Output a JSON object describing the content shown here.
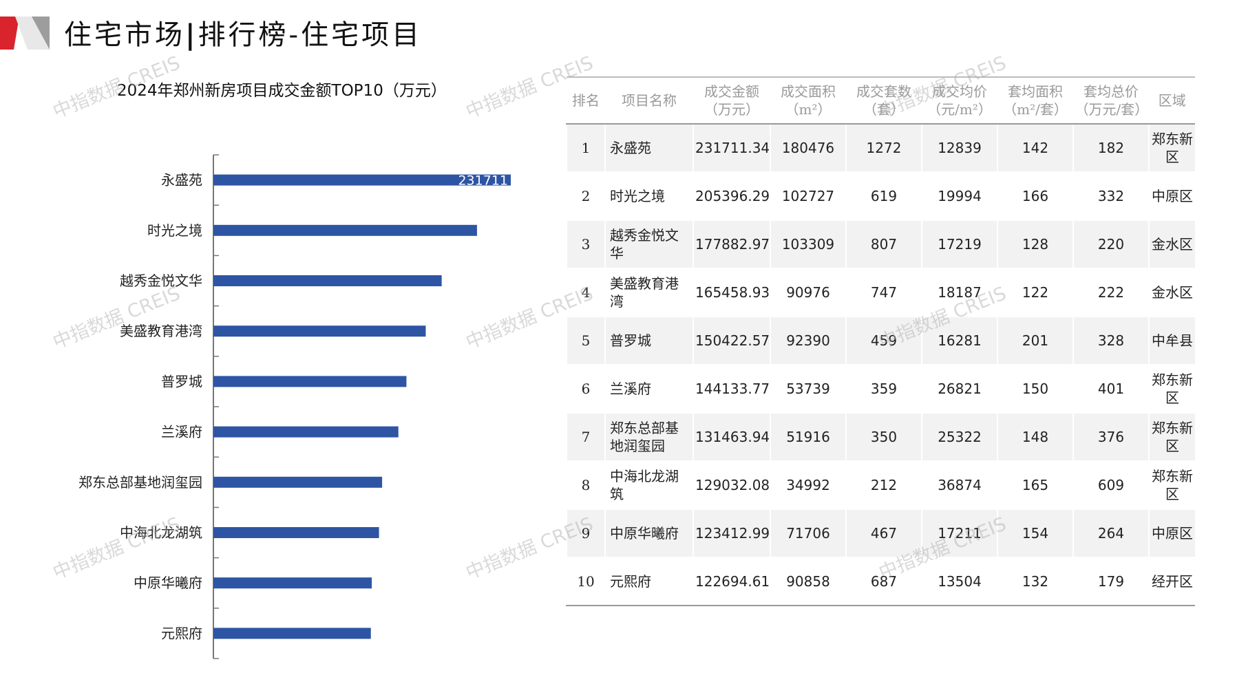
{
  "header": {
    "title_left": "住宅市场",
    "title_sep": "|",
    "title_right": "排行榜-住宅项目"
  },
  "colors": {
    "bar": "#2e55a4",
    "accent_red": "#d9232d",
    "accent_gray": "#9d9d9d"
  },
  "watermark": {
    "text": "中指数据 CREIS"
  },
  "chart_data": {
    "type": "bar",
    "title": "2024年郑州新房项目成交金额TOP10（万元）",
    "orientation": "horizontal",
    "categories": [
      "永盛苑",
      "时光之境",
      "越秀金悦文华",
      "美盛教育港湾",
      "普罗城",
      "兰溪府",
      "郑东总部基地润玺园",
      "中海北龙湖筑",
      "中原华曦府",
      "元熙府"
    ],
    "values": [
      231711.34,
      205396.29,
      177882.97,
      165458.93,
      150422.57,
      144133.77,
      131463.94,
      129032.08,
      123412.99,
      122694.61
    ],
    "data_labels": [
      "231711",
      "",
      "",
      "",
      "",
      "",
      "",
      "",
      "",
      ""
    ]
  },
  "table": {
    "headers": [
      [
        "排名"
      ],
      [
        "项目名称"
      ],
      [
        "成交金额",
        "（万元）"
      ],
      [
        "成交面积",
        "（m²）"
      ],
      [
        "成交套数",
        "（套）"
      ],
      [
        "成交均价",
        "（元/m²）"
      ],
      [
        "套均面积",
        "（m²/套）"
      ],
      [
        "套均总价",
        "（万元/套）"
      ],
      [
        "区域"
      ]
    ],
    "rows": [
      [
        "1",
        "永盛苑",
        "231711.34",
        "180476",
        "1272",
        "12839",
        "142",
        "182",
        "郑东新区"
      ],
      [
        "2",
        "时光之境",
        "205396.29",
        "102727",
        "619",
        "19994",
        "166",
        "332",
        "中原区"
      ],
      [
        "3",
        "越秀金悦文华",
        "177882.97",
        "103309",
        "807",
        "17219",
        "128",
        "220",
        "金水区"
      ],
      [
        "4",
        "美盛教育港湾",
        "165458.93",
        "90976",
        "747",
        "18187",
        "122",
        "222",
        "金水区"
      ],
      [
        "5",
        "普罗城",
        "150422.57",
        "92390",
        "459",
        "16281",
        "201",
        "328",
        "中牟县"
      ],
      [
        "6",
        "兰溪府",
        "144133.77",
        "53739",
        "359",
        "26821",
        "150",
        "401",
        "郑东新区"
      ],
      [
        "7",
        "郑东总部基地润玺园",
        "131463.94",
        "51916",
        "350",
        "25322",
        "148",
        "376",
        "郑东新区"
      ],
      [
        "8",
        "中海北龙湖筑",
        "129032.08",
        "34992",
        "212",
        "36874",
        "165",
        "609",
        "郑东新区"
      ],
      [
        "9",
        "中原华曦府",
        "123412.99",
        "71706",
        "467",
        "17211",
        "154",
        "264",
        "中原区"
      ],
      [
        "10",
        "元熙府",
        "122694.61",
        "90858",
        "687",
        "13504",
        "132",
        "179",
        "经开区"
      ]
    ]
  }
}
